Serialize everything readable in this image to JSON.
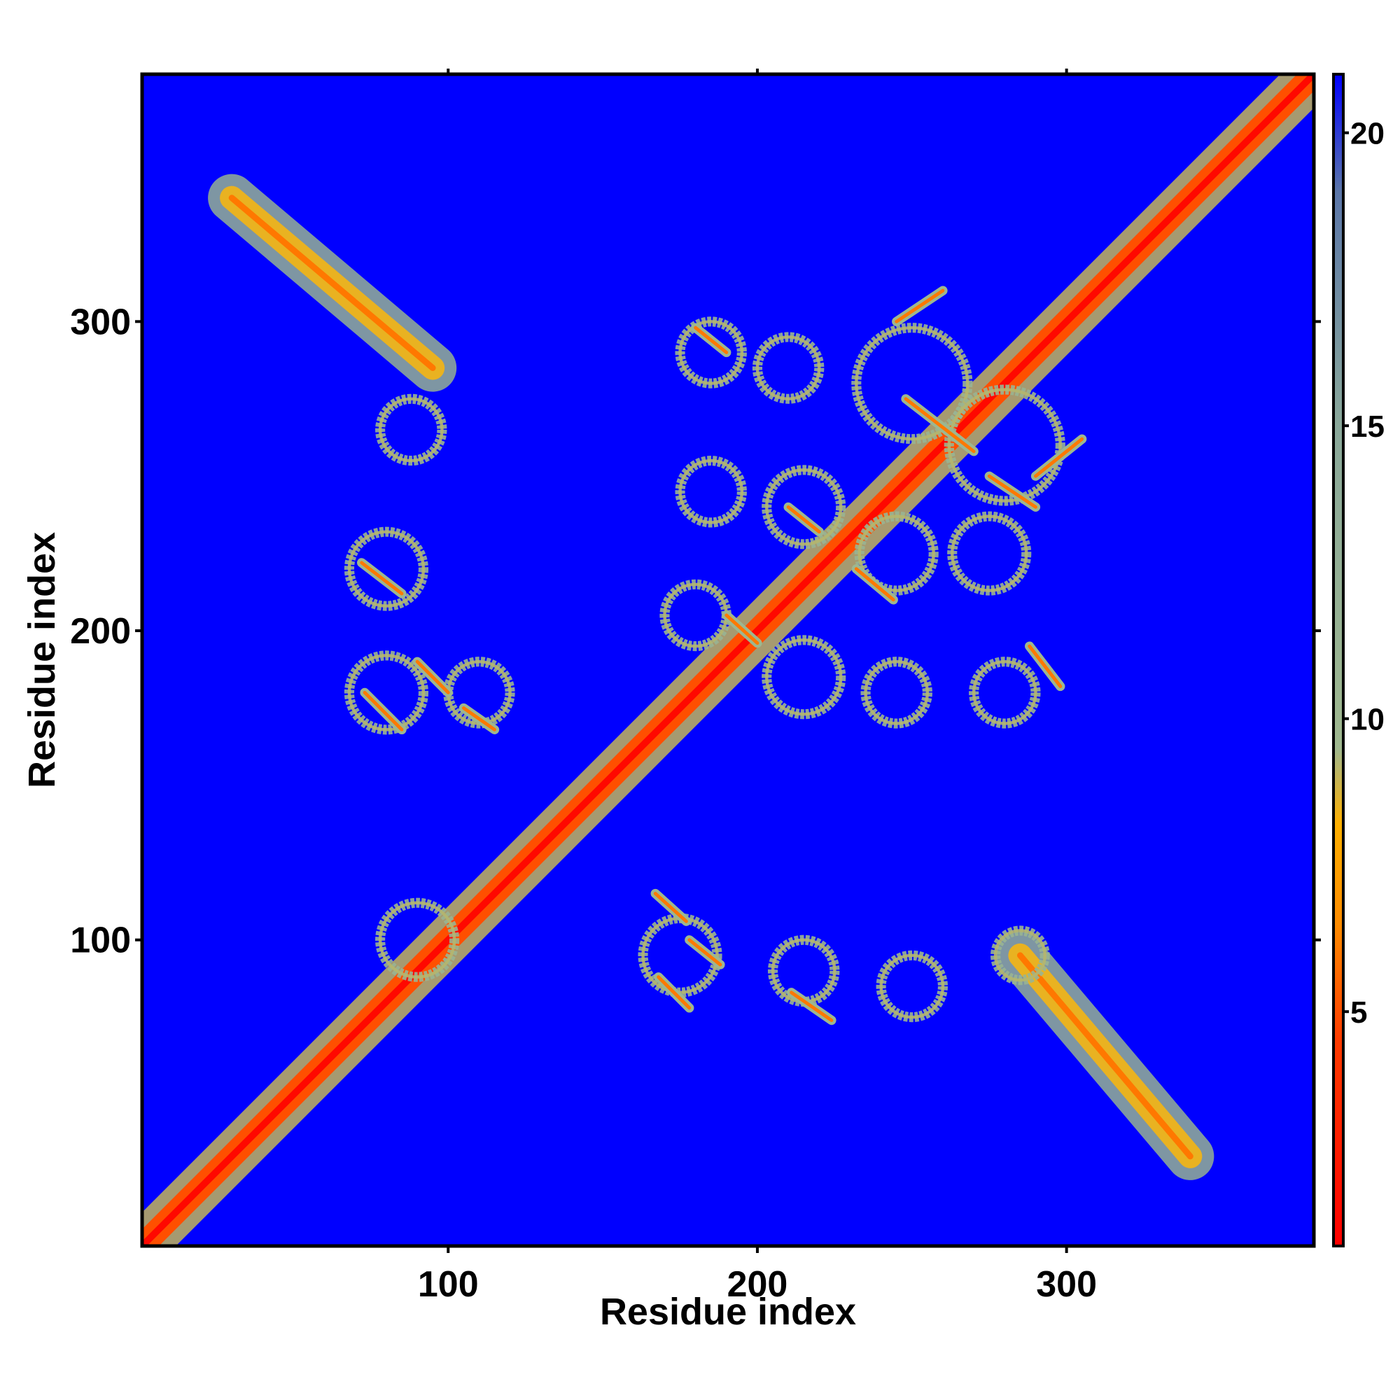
{
  "chart_data": {
    "type": "heatmap",
    "title": "",
    "xlabel": "Residue index",
    "ylabel": "Residue index",
    "xlim": [
      1,
      380
    ],
    "ylim": [
      1,
      380
    ],
    "x_ticks": [
      "100",
      "200",
      "300"
    ],
    "y_ticks": [
      "100",
      "200",
      "300"
    ],
    "x_tick_values": [
      100,
      200,
      300
    ],
    "y_tick_values": [
      100,
      200,
      300
    ],
    "colorbar": {
      "range": [
        1,
        21
      ],
      "ticks": [
        "5",
        "10",
        "15",
        "20"
      ],
      "tick_values": [
        5,
        10,
        15,
        20
      ],
      "stops": [
        {
          "value": 1,
          "color": "#ff0000"
        },
        {
          "value": 4.5,
          "color": "#ff3b00"
        },
        {
          "value": 6.5,
          "color": "#ff8c00"
        },
        {
          "value": 8.2,
          "color": "#ffb000"
        },
        {
          "value": 9.5,
          "color": "#9fb88f"
        },
        {
          "value": 15,
          "color": "#8aa89a"
        },
        {
          "value": 19,
          "color": "#5b76a8"
        },
        {
          "value": 21,
          "color": "#0000ff"
        }
      ]
    },
    "background_value": 21,
    "background_color": "#0000ff",
    "contact_features": [
      {
        "kind": "band",
        "from": [
          1,
          1
        ],
        "to": [
          380,
          380
        ],
        "core": 1.5,
        "mid": 5,
        "halo": 9,
        "half_width": 2.2,
        "max_width": 7
      },
      {
        "kind": "band",
        "from": [
          30,
          340
        ],
        "to": [
          95,
          285
        ],
        "core": 6,
        "mid": 8.5,
        "halo": 12,
        "half_width": 2,
        "max_width": 7
      },
      {
        "kind": "band",
        "from": [
          285,
          95
        ],
        "to": [
          340,
          30
        ],
        "core": 6,
        "mid": 8.5,
        "halo": 12,
        "half_width": 2,
        "max_width": 7
      },
      {
        "kind": "ring",
        "center": [
          88,
          265
        ],
        "radius": 10
      },
      {
        "kind": "ring",
        "center": [
          80,
          220
        ],
        "radius": 12
      },
      {
        "kind": "ring",
        "center": [
          80,
          180
        ],
        "radius": 12
      },
      {
        "kind": "ring",
        "center": [
          110,
          180
        ],
        "radius": 10
      },
      {
        "kind": "ring",
        "center": [
          185,
          290
        ],
        "radius": 10
      },
      {
        "kind": "ring",
        "center": [
          210,
          285
        ],
        "radius": 10
      },
      {
        "kind": "ring",
        "center": [
          250,
          280
        ],
        "radius": 18
      },
      {
        "kind": "ring",
        "center": [
          280,
          260
        ],
        "radius": 18
      },
      {
        "kind": "ring",
        "center": [
          185,
          245
        ],
        "radius": 10
      },
      {
        "kind": "ring",
        "center": [
          215,
          240
        ],
        "radius": 12
      },
      {
        "kind": "ring",
        "center": [
          245,
          225
        ],
        "radius": 12
      },
      {
        "kind": "ring",
        "center": [
          275,
          225
        ],
        "radius": 12
      },
      {
        "kind": "ring",
        "center": [
          180,
          205
        ],
        "radius": 10
      },
      {
        "kind": "ring",
        "center": [
          215,
          185
        ],
        "radius": 12
      },
      {
        "kind": "ring",
        "center": [
          245,
          180
        ],
        "radius": 10
      },
      {
        "kind": "ring",
        "center": [
          280,
          180
        ],
        "radius": 10
      },
      {
        "kind": "ring",
        "center": [
          90,
          100
        ],
        "radius": 12
      },
      {
        "kind": "ring",
        "center": [
          175,
          95
        ],
        "radius": 12
      },
      {
        "kind": "ring",
        "center": [
          215,
          90
        ],
        "radius": 10
      },
      {
        "kind": "ring",
        "center": [
          250,
          85
        ],
        "radius": 10
      },
      {
        "kind": "ring",
        "center": [
          285,
          95
        ],
        "radius": 8
      },
      {
        "kind": "segment",
        "from": [
          72,
          222
        ],
        "to": [
          85,
          212
        ]
      },
      {
        "kind": "segment",
        "from": [
          73,
          180
        ],
        "to": [
          85,
          168
        ]
      },
      {
        "kind": "segment",
        "from": [
          90,
          190
        ],
        "to": [
          100,
          180
        ]
      },
      {
        "kind": "segment",
        "from": [
          105,
          175
        ],
        "to": [
          115,
          168
        ]
      },
      {
        "kind": "segment",
        "from": [
          180,
          298
        ],
        "to": [
          190,
          290
        ]
      },
      {
        "kind": "segment",
        "from": [
          245,
          300
        ],
        "to": [
          260,
          310
        ]
      },
      {
        "kind": "segment",
        "from": [
          248,
          275
        ],
        "to": [
          270,
          258
        ]
      },
      {
        "kind": "segment",
        "from": [
          275,
          250
        ],
        "to": [
          290,
          240
        ]
      },
      {
        "kind": "segment",
        "from": [
          290,
          250
        ],
        "to": [
          305,
          262
        ]
      },
      {
        "kind": "segment",
        "from": [
          210,
          240
        ],
        "to": [
          220,
          232
        ]
      },
      {
        "kind": "segment",
        "from": [
          232,
          220
        ],
        "to": [
          244,
          210
        ]
      },
      {
        "kind": "segment",
        "from": [
          288,
          195
        ],
        "to": [
          298,
          182
        ]
      },
      {
        "kind": "segment",
        "from": [
          167,
          115
        ],
        "to": [
          177,
          106
        ]
      },
      {
        "kind": "segment",
        "from": [
          178,
          100
        ],
        "to": [
          188,
          92
        ]
      },
      {
        "kind": "segment",
        "from": [
          168,
          88
        ],
        "to": [
          178,
          78
        ]
      },
      {
        "kind": "segment",
        "from": [
          211,
          83
        ],
        "to": [
          224,
          74
        ]
      },
      {
        "kind": "segment",
        "from": [
          190,
          205
        ],
        "to": [
          200,
          196
        ]
      }
    ]
  }
}
